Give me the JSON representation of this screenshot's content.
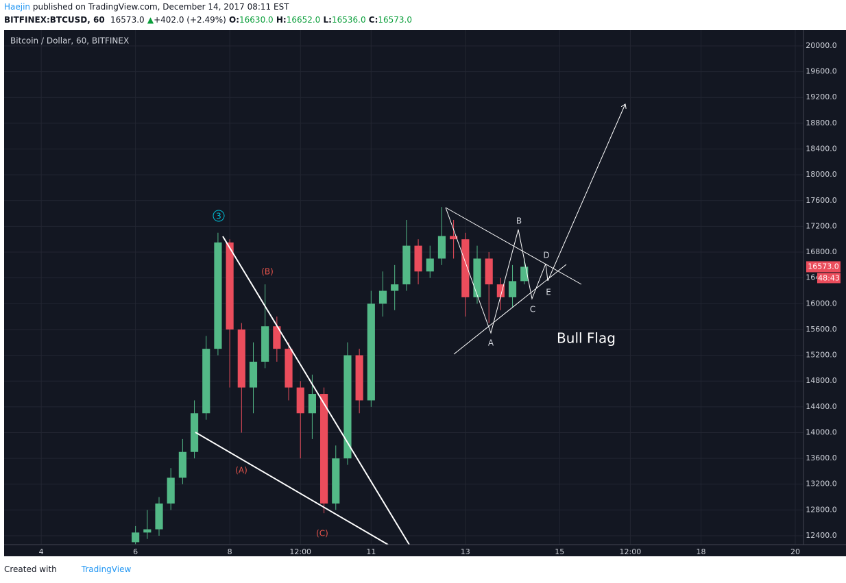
{
  "header": {
    "author": "Haejin",
    "published": "published on TradingView.com, December 14, 2017 08:11 EST",
    "symbol": "BITFINEX:BTCUSD, 60",
    "last": "16573.0",
    "arrow": "▲",
    "change": "+402.0 (+2.49%)",
    "open_label": "O:",
    "open": "16630.0",
    "high_label": "H:",
    "high": "16652.0",
    "low_label": "L:",
    "low": "16536.0",
    "close_label": "C:",
    "close": "16573.0"
  },
  "footer": {
    "prefix": "Created with",
    "brand": "TradingView"
  },
  "chart_data": {
    "type": "candlestick",
    "title": "Bitcoin / Dollar, 60, BITFINEX",
    "x": [
      6.0,
      6.25,
      6.5,
      6.75,
      7.0,
      7.25,
      7.5,
      7.75,
      8.0,
      8.25,
      8.5,
      8.75,
      9.0,
      9.25,
      9.5,
      9.75,
      10.0,
      10.25,
      10.5,
      10.75,
      11.0,
      11.25,
      11.5,
      11.75,
      12.0,
      12.25,
      12.5,
      12.75,
      13.0,
      13.25,
      13.5,
      13.75,
      14.0,
      14.25
    ],
    "open": [
      12300,
      12450,
      12500,
      12900,
      13300,
      13700,
      14300,
      15300,
      16950,
      15600,
      14700,
      15100,
      15650,
      15300,
      14700,
      14300,
      14600,
      12900,
      13600,
      15200,
      14500,
      16000,
      16200,
      16300,
      16900,
      16500,
      16700,
      17050,
      17000,
      16100,
      16700,
      16300,
      16100,
      16350
    ],
    "close": [
      12450,
      12500,
      12900,
      13300,
      13700,
      14300,
      15300,
      16950,
      15600,
      14700,
      15100,
      15650,
      15300,
      14700,
      14300,
      14600,
      12900,
      13600,
      15200,
      14500,
      16000,
      16200,
      16300,
      16900,
      16500,
      16700,
      17050,
      17000,
      16100,
      16700,
      16300,
      16100,
      16350,
      16573
    ],
    "high": [
      12550,
      12800,
      13000,
      13450,
      13900,
      14500,
      15500,
      17100,
      17000,
      15700,
      15400,
      16300,
      15800,
      15400,
      14800,
      14900,
      14700,
      13800,
      15400,
      15300,
      16200,
      16500,
      16600,
      17300,
      17000,
      16900,
      17500,
      17300,
      17100,
      16900,
      16800,
      16400,
      16600,
      16700
    ],
    "low": [
      12270,
      12350,
      12400,
      12800,
      13200,
      13600,
      14200,
      15200,
      14700,
      14000,
      14300,
      15000,
      15100,
      14500,
      13600,
      13900,
      12750,
      12800,
      13500,
      14300,
      14400,
      15800,
      15900,
      16200,
      16300,
      16400,
      16600,
      16700,
      15800,
      16000,
      15700,
      15900,
      15950,
      16300
    ],
    "up_color": "#53b987",
    "down_color": "#eb4d5c",
    "xlim": [
      3.212,
      20.175
    ],
    "xticks": [
      4,
      6,
      8,
      {
        "value": 9.5,
        "label": "12:00"
      },
      11,
      13,
      15,
      {
        "value": 16.5,
        "label": "12:00"
      },
      18,
      20
    ],
    "ylim": [
      12262,
      20244
    ],
    "yticks": [
      {
        "value": 12400,
        "label": "12400.0"
      },
      {
        "value": 12800,
        "label": "12800.0"
      },
      {
        "value": 13200,
        "label": "13200.0"
      },
      {
        "value": 13600,
        "label": "13600.0"
      },
      {
        "value": 14000,
        "label": "14000.0"
      },
      {
        "value": 14400,
        "label": "14400.0"
      },
      {
        "value": 14800,
        "label": "14800.0"
      },
      {
        "value": 15200,
        "label": "15200.0"
      },
      {
        "value": 15600,
        "label": "15600.0"
      },
      {
        "value": 16000,
        "label": "16000.0"
      },
      {
        "value": 16400,
        "label": "16400.0"
      },
      {
        "value": 16800,
        "label": "16800.0"
      },
      {
        "value": 17200,
        "label": "17200.0"
      },
      {
        "value": 17600,
        "label": "17600.0"
      },
      {
        "value": 18000,
        "label": "18000.0"
      },
      {
        "value": 18400,
        "label": "18400.0"
      },
      {
        "value": 18800,
        "label": "18800.0"
      },
      {
        "value": 19200,
        "label": "19200.0"
      },
      {
        "value": 19600,
        "label": "19600.0"
      },
      {
        "value": 20000,
        "label": "20000.0"
      }
    ],
    "grid": true,
    "last_price": {
      "value": 16573,
      "label": "16573.0"
    },
    "countdown": "48:43",
    "annotations": [
      "3",
      "(B)",
      "(A)",
      "(C)",
      "A",
      "B",
      "C",
      "D",
      "E",
      "Bull Flag"
    ]
  }
}
